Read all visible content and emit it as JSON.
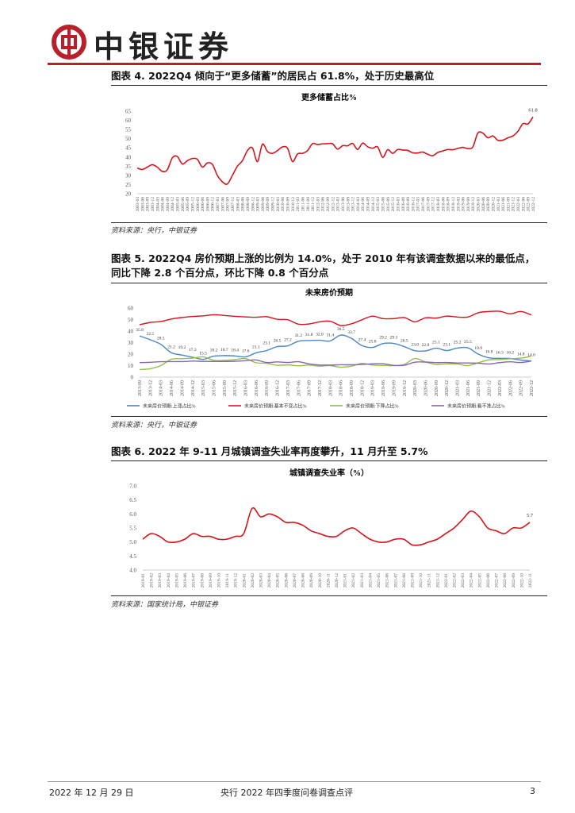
{
  "header": {
    "brand": "中银证券",
    "logo_icon": "bank-of-china-logo",
    "accent": "#b8202c"
  },
  "figures": [
    {
      "title": "图表 4. 2022Q4 倾向于“更多储蓄”的居民占 61.8%，处于历史最高位",
      "source": "资料来源：央行，中银证券"
    },
    {
      "title": "图表 5. 2022Q4 房价预期上涨的比例为 14.0%，处于 2010 年有该调查数据以来的最低点，同比下降 2.8 个百分点，环比下降 0.8 个百分点",
      "source": "资料来源：央行，中银证券"
    },
    {
      "title": "图表 6. 2022 年 9-11 月城镇调查失业率再度攀升，11 月升至 5.7%",
      "source": "资料来源：国家统计局，中银证券"
    }
  ],
  "chart_data": [
    {
      "type": "line",
      "title": "更多储蓄占比%",
      "ylim": [
        20,
        65
      ],
      "yticks": [
        20,
        25,
        30,
        35,
        40,
        45,
        50,
        55,
        60,
        65
      ],
      "categories": [
        "2003-03",
        "2003-06",
        "2003-09",
        "2003-12",
        "2004-03",
        "2004-06",
        "2004-09",
        "2004-12",
        "2005-03",
        "2005-06",
        "2005-09",
        "2005-12",
        "2006-03",
        "2006-06",
        "2006-09",
        "2006-12",
        "2007-03",
        "2007-06",
        "2007-09",
        "2007-12",
        "2008-03",
        "2008-06",
        "2008-09",
        "2008-12",
        "2009-03",
        "2009-06",
        "2009-09",
        "2009-12",
        "2010-03",
        "2010-06",
        "2010-09",
        "2010-12",
        "2011-03",
        "2011-06",
        "2011-09",
        "2011-12",
        "2012-03",
        "2012-06",
        "2012-09",
        "2012-12",
        "2013-03",
        "2013-06",
        "2013-09",
        "2013-12",
        "2014-03",
        "2014-06",
        "2014-09",
        "2014-12",
        "2015-03",
        "2015-06",
        "2015-09",
        "2015-12",
        "2016-03",
        "2016-06",
        "2016-09",
        "2016-12",
        "2017-03",
        "2017-06",
        "2017-09",
        "2017-12",
        "2018-03",
        "2018-06",
        "2018-09",
        "2018-12",
        "2019-03",
        "2019-06",
        "2019-09",
        "2019-12",
        "2020-03",
        "2020-06",
        "2020-09",
        "2020-12",
        "2021-03",
        "2021-06",
        "2021-09",
        "2021-12",
        "2022-03",
        "2022-06",
        "2022-09",
        "2022-12"
      ],
      "series": [
        {
          "name": "更多储蓄占比%",
          "color": "#d7141a",
          "values": [
            34,
            33.2,
            34.5,
            35.8,
            34.5,
            32.2,
            33,
            39.5,
            40.3,
            36.2,
            38,
            39.2,
            38.8,
            34.5,
            36.8,
            36,
            30,
            26.5,
            25.3,
            30,
            35,
            38,
            43.5,
            45,
            37.5,
            47,
            43,
            42,
            43.5,
            45.5,
            44.8,
            37.5,
            41.7,
            42,
            43.5,
            47.3,
            46.8,
            47.2,
            47.3,
            47.2,
            44.3,
            46.2,
            46.1,
            47.4,
            44.1,
            47.6,
            45.6,
            44.8,
            45.5,
            39.8,
            44,
            42,
            44.1,
            43.8,
            43.6,
            42.3,
            42.2,
            42.7,
            41.5,
            40.7,
            42.5,
            43.3,
            44.1,
            44,
            44.7,
            45.3,
            44.6,
            45.5,
            53.1,
            53,
            50.5,
            51.5,
            49.1,
            49.2,
            50.5,
            51.5,
            54,
            58.2,
            58,
            61.8
          ]
        }
      ],
      "annotations": [
        {
          "index": 79,
          "text": "61.8"
        }
      ]
    },
    {
      "type": "line",
      "title": "未来房价预期",
      "ylim": [
        0,
        60
      ],
      "yticks": [
        0,
        10,
        20,
        30,
        40,
        50,
        60
      ],
      "legend": "bottom",
      "categories": [
        "2013-09",
        "2013-12",
        "2014-03",
        "2014-06",
        "2014-09",
        "2014-12",
        "2015-03",
        "2015-06",
        "2015-09",
        "2015-12",
        "2016-03",
        "2016-06",
        "2016-09",
        "2016-12",
        "2017-03",
        "2017-06",
        "2017-09",
        "2017-12",
        "2018-03",
        "2018-06",
        "2018-09",
        "2018-12",
        "2019-03",
        "2019-06",
        "2019-09",
        "2019-12",
        "2020-03",
        "2020-06",
        "2020-09",
        "2020-12",
        "2021-03",
        "2021-06",
        "2021-09",
        "2021-12",
        "2022-03",
        "2022-06",
        "2022-09",
        "2022-12"
      ],
      "series": [
        {
          "name": "未来房价预期:上涨占比%",
          "color": "#4a86c8",
          "labels": true,
          "values": [
            35.8,
            32.5,
            28.5,
            21.2,
            19.2,
            17.3,
            15.5,
            18.2,
            18.7,
            18.4,
            17.6,
            21.1,
            23.1,
            26.5,
            27.2,
            31.2,
            31.8,
            32.0,
            31.4,
            36.5,
            33.7,
            27.4,
            25.8,
            29.2,
            29.3,
            26.5,
            23.0,
            22.8,
            25.1,
            23.1,
            25.2,
            25.5,
            19.9,
            16.8,
            16.3,
            16.2,
            14.8,
            14.0
          ]
        },
        {
          "name": "未来房价预期:基本不变占比%",
          "color": "#d7141a",
          "values": [
            45.5,
            47.5,
            48.3,
            50.5,
            51.8,
            52.7,
            53.2,
            54.2,
            53.6,
            52.8,
            52.3,
            52,
            52.5,
            50.2,
            49.8,
            46,
            46.2,
            48,
            48.6,
            44.8,
            46.3,
            49.8,
            53,
            50.8,
            50.8,
            51.8,
            48,
            51.5,
            51.3,
            53,
            52.2,
            52.2,
            56,
            57,
            57.2,
            55,
            57,
            54
          ]
        },
        {
          "name": "未来房价预期:下降占比%",
          "color": "#92c04a",
          "values": [
            6.6,
            7.3,
            10,
            15.5,
            16,
            16.5,
            17.6,
            14.6,
            14.6,
            15.2,
            16.1,
            12.5,
            12,
            10.3,
            10.6,
            9.8,
            10.5,
            9.5,
            10,
            8.6,
            9.5,
            11.9,
            10.5,
            10.1,
            10,
            11,
            16.2,
            13.1,
            11,
            11.5,
            11.4,
            10,
            12.5,
            15,
            15.2,
            16,
            16.5,
            18.3
          ]
        },
        {
          "name": "未来房价预期:看不准占比%",
          "color": "#8b64b0",
          "values": [
            12.6,
            12.9,
            13.4,
            13.5,
            13.5,
            13.9,
            13.7,
            13.6,
            13.6,
            13.8,
            14.3,
            14.9,
            12.7,
            13.2,
            12.7,
            13.4,
            11.5,
            10.5,
            10.5,
            10.7,
            10.7,
            11,
            11.5,
            11.6,
            10.2,
            10.3,
            13,
            13.1,
            12.6,
            12.7,
            12.3,
            12.3,
            12.1,
            11.4,
            12.6,
            13.3,
            12.7,
            14
          ]
        }
      ]
    },
    {
      "type": "line",
      "title": "城镇调查失业率（%）",
      "ylim": [
        4.0,
        7.0
      ],
      "yticks": [
        "4.0",
        "4.5",
        "5.0",
        "5.5",
        "6.0",
        "6.5",
        "7.0"
      ],
      "categories": [
        "2019-01",
        "2019-02",
        "2019-03",
        "2019-04",
        "2019-05",
        "2019-06",
        "2019-07",
        "2019-08",
        "2019-09",
        "2019-10",
        "2019-11",
        "2019-12",
        "2020-01",
        "2020-02",
        "2020-03",
        "2020-04",
        "2020-05",
        "2020-06",
        "2020-07",
        "2020-08",
        "2020-09",
        "2020-10",
        "2020-11",
        "2020-12",
        "2021-01",
        "2021-02",
        "2021-03",
        "2021-04",
        "2021-05",
        "2021-06",
        "2021-07",
        "2021-08",
        "2021-09",
        "2021-10",
        "2021-11",
        "2021-12",
        "2022-01",
        "2022-02",
        "2022-03",
        "2022-04",
        "2022-05",
        "2022-06",
        "2022-07",
        "2022-08",
        "2022-09",
        "2022-10",
        "2022-11"
      ],
      "series": [
        {
          "name": "城镇调查失业率",
          "color": "#d7141a",
          "values": [
            5.1,
            5.3,
            5.2,
            5.0,
            5.0,
            5.1,
            5.3,
            5.2,
            5.2,
            5.1,
            5.1,
            5.2,
            5.3,
            6.2,
            5.9,
            6.0,
            5.9,
            5.7,
            5.7,
            5.6,
            5.4,
            5.3,
            5.2,
            5.2,
            5.4,
            5.5,
            5.3,
            5.1,
            5.0,
            5.0,
            5.1,
            5.1,
            4.9,
            4.9,
            5.0,
            5.1,
            5.3,
            5.5,
            5.8,
            6.1,
            5.9,
            5.5,
            5.4,
            5.3,
            5.5,
            5.5,
            5.7
          ]
        }
      ],
      "annotations": [
        {
          "index": 46,
          "text": "5.7"
        }
      ]
    }
  ],
  "footer": {
    "date": "2022 年 12 月 29 日",
    "doc_title": "央行 2022 年四季度问卷调查点评",
    "page": "3"
  }
}
